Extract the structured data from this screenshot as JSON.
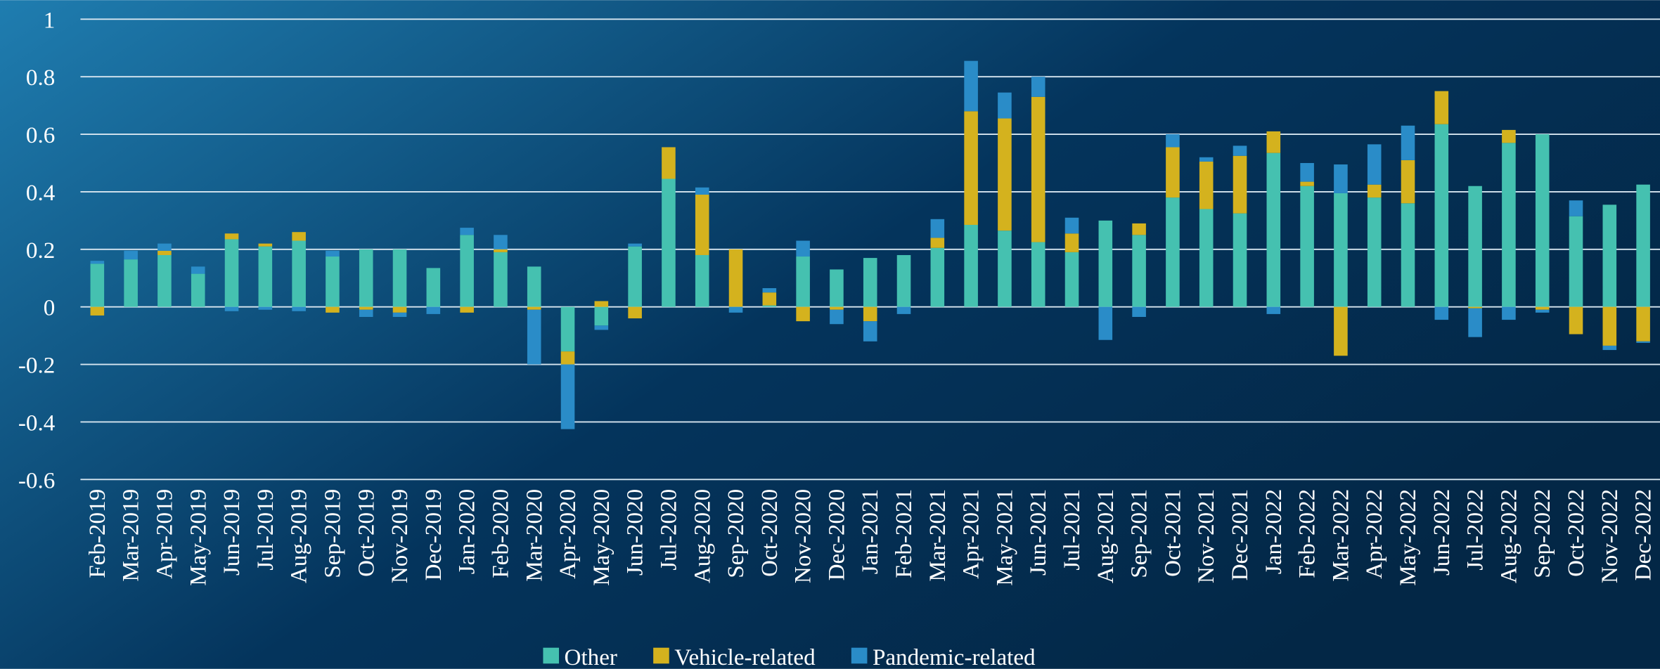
{
  "chart_data": {
    "type": "bar",
    "stacked": true,
    "categories": [
      "Feb-2019",
      "Mar-2019",
      "Apr-2019",
      "May-2019",
      "Jun-2019",
      "Jul-2019",
      "Aug-2019",
      "Sep-2019",
      "Oct-2019",
      "Nov-2019",
      "Dec-2019",
      "Jan-2020",
      "Feb-2020",
      "Mar-2020",
      "Apr-2020",
      "May-2020",
      "Jun-2020",
      "Jul-2020",
      "Aug-2020",
      "Sep-2020",
      "Oct-2020",
      "Nov-2020",
      "Dec-2020",
      "Jan-2021",
      "Feb-2021",
      "Mar-2021",
      "Apr-2021",
      "May-2021",
      "Jun-2021",
      "Jul-2021",
      "Aug-2021",
      "Sep-2021",
      "Oct-2021",
      "Nov-2021",
      "Dec-2021",
      "Jan-2022",
      "Feb-2022",
      "Mar-2022",
      "Apr-2022",
      "May-2022",
      "Jun-2022",
      "Jul-2022",
      "Aug-2022",
      "Sep-2022",
      "Oct-2022",
      "Nov-2022",
      "Dec-2022"
    ],
    "series": [
      {
        "name": "Other",
        "color": "#45c1b0",
        "values": [
          0.15,
          0.165,
          0.18,
          0.115,
          0.235,
          0.21,
          0.23,
          0.175,
          0.2,
          0.2,
          0.135,
          0.25,
          0.19,
          0.14,
          -0.155,
          -0.065,
          0.21,
          0.445,
          0.18,
          0,
          0.005,
          0.175,
          0.13,
          0.17,
          0.18,
          0.205,
          0.285,
          0.265,
          0.225,
          0.19,
          0.3,
          0.25,
          0.38,
          0.34,
          0.325,
          0.535,
          0.42,
          0.395,
          0.38,
          0.36,
          0.635,
          0.42,
          0.57,
          0.6,
          0.315,
          0.355,
          0.425
        ]
      },
      {
        "name": "Vehicle-related",
        "color": "#d4b21e",
        "values": [
          -0.03,
          0,
          0.015,
          0,
          0.02,
          0.01,
          0.03,
          -0.02,
          -0.01,
          -0.02,
          0,
          -0.02,
          0.01,
          -0.01,
          -0.045,
          0.02,
          -0.04,
          0.11,
          0.21,
          0.2,
          0.045,
          -0.05,
          -0.01,
          -0.05,
          0,
          0.035,
          0.395,
          0.39,
          0.505,
          0.065,
          0,
          0.04,
          0.175,
          0.165,
          0.2,
          0.075,
          0.015,
          -0.17,
          0.045,
          0.15,
          0.115,
          -0.005,
          0.045,
          -0.01,
          -0.095,
          -0.135,
          -0.12
        ]
      },
      {
        "name": "Pandemic-related",
        "color": "#2a8cc8",
        "values": [
          0.01,
          0.03,
          0.025,
          0.025,
          -0.015,
          -0.01,
          -0.015,
          0.02,
          -0.025,
          -0.015,
          -0.025,
          0.025,
          0.05,
          -0.19,
          -0.225,
          -0.015,
          0.01,
          0,
          0.025,
          -0.02,
          0.015,
          0.055,
          -0.05,
          -0.07,
          -0.025,
          0.065,
          0.175,
          0.09,
          0.07,
          0.055,
          -0.115,
          -0.035,
          0.045,
          0.015,
          0.035,
          -0.025,
          0.065,
          0.1,
          0.14,
          0.12,
          -0.045,
          -0.1,
          -0.045,
          -0.01,
          0.055,
          -0.015,
          -0.005
        ]
      }
    ],
    "ylim": [
      -0.6,
      1
    ],
    "yticks": [
      -0.6,
      -0.4,
      -0.2,
      0,
      0.2,
      0.4,
      0.6,
      0.8,
      1
    ],
    "grid": true,
    "legend": "bottom"
  }
}
